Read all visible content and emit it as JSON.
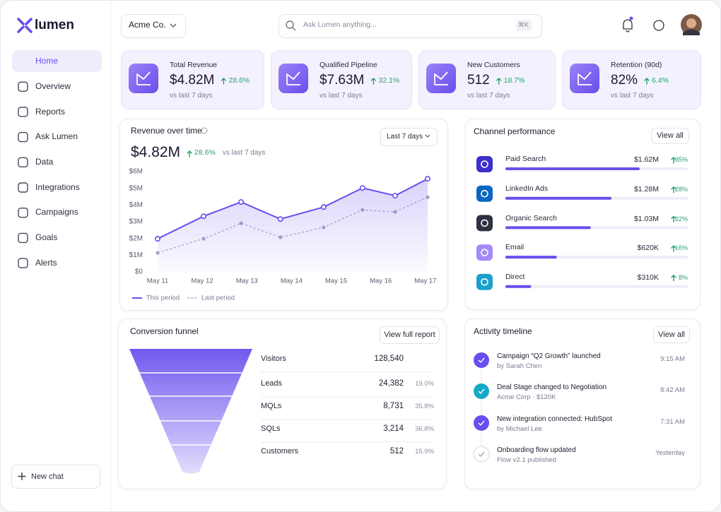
{
  "brand": "lumen",
  "nav": [
    "Home",
    "Overview",
    "Reports",
    "Ask Lumen",
    "Data",
    "Integrations",
    "Campaigns",
    "Goals",
    "Alerts"
  ],
  "new_chat": "New chat",
  "org": "Acme Co.",
  "search": {
    "placeholder": "Ask Lumen anything...",
    "shortcut": "⌘K"
  },
  "kpis": [
    {
      "label": "Total Revenue",
      "value": "$4.82M",
      "change": "28.6%",
      "note": "vs last 7 days"
    },
    {
      "label": "Qualified Pipeline",
      "value": "$7.63M",
      "change": "32.1%",
      "note": "vs last 7 days"
    },
    {
      "label": "New Customers",
      "value": "512",
      "change": "18.7%",
      "note": "vs last 7 days"
    },
    {
      "label": "Retention (90d)",
      "value": "82%",
      "change": "6.4%",
      "note": "vs last 7 days"
    }
  ],
  "revenue": {
    "title": "Revenue over time",
    "value": "$4.82M",
    "change": "28.6%",
    "note": "vs last 7 days",
    "range": "Last 7 days",
    "chart_data": {
      "type": "line",
      "x": [
        11,
        12.03,
        12.87,
        13.75,
        14.72,
        15.59,
        16.32,
        17.05
      ],
      "xlim": [
        11,
        17.05
      ],
      "xticks": [
        {
          "value": 11,
          "label": "May 11"
        },
        {
          "value": 12,
          "label": "May 12"
        },
        {
          "value": 13,
          "label": "May 13"
        },
        {
          "value": 14,
          "label": "May 14"
        },
        {
          "value": 15,
          "label": "May 15"
        },
        {
          "value": 16,
          "label": "May 16"
        },
        {
          "value": 17,
          "label": "May 17"
        }
      ],
      "ylim": [
        0,
        6
      ],
      "yticks": [
        {
          "value": 0,
          "label": "$0"
        },
        {
          "value": 1,
          "label": "$1M"
        },
        {
          "value": 2,
          "label": "$2M"
        },
        {
          "value": 3,
          "label": "$3M"
        },
        {
          "value": 4,
          "label": "$4M"
        },
        {
          "value": 5,
          "label": "$5M"
        },
        {
          "value": 6,
          "label": "$6M"
        }
      ],
      "grid": false,
      "series": [
        {
          "name": "This period",
          "color": "#6a4ded",
          "values": [
            1.98,
            3.33,
            4.18,
            3.16,
            3.88,
            5.02,
            4.56,
            5.57
          ]
        },
        {
          "name": "Last period",
          "color": "#a9a4c6",
          "values": [
            1.14,
            1.98,
            2.91,
            2.07,
            2.66,
            3.71,
            3.59,
            4.47
          ]
        }
      ]
    }
  },
  "channels": {
    "title": "Channel performance",
    "action": "View all",
    "chart_data": {
      "type": "bar",
      "categories": [
        "Paid Search",
        "LinkedIn Ads",
        "Organic Search",
        "Email",
        "Direct"
      ],
      "values": [
        1620000,
        1280000,
        1030000,
        620000,
        310000
      ],
      "value_labels": [
        "$1.62M",
        "$1.28M",
        "$1.03M",
        "$620K",
        "$310K"
      ],
      "changes": [
        "35%",
        "28%",
        "22%",
        "16%",
        "8%"
      ],
      "xlim": [
        0,
        2200000
      ],
      "color": "#6a4ded"
    }
  },
  "funnel": {
    "title": "Conversion funnel",
    "action": "View full report",
    "stages": [
      {
        "name": "Visitors",
        "value": "128,540"
      },
      {
        "name": "Leads",
        "value": "24,382",
        "rate": "19.0%"
      },
      {
        "name": "MQLs",
        "value": "8,731",
        "rate": "35.8%"
      },
      {
        "name": "SQLs",
        "value": "3,214",
        "rate": "36.8%"
      },
      {
        "name": "Customers",
        "value": "512",
        "rate": "15.9%"
      }
    ]
  },
  "activity": {
    "title": "Activity timeline",
    "action": "View all",
    "items": [
      {
        "title": "Campaign “Q2 Growth” launched",
        "detail": "by Sarah Chen",
        "time": "9:15 AM"
      },
      {
        "title": "Deal Stage changed to Negotiation",
        "detail": "Acme Corp · $120K",
        "time": "8:42 AM"
      },
      {
        "title": "New integration connected: HubSpot",
        "detail": "by Michael Lee",
        "time": "7:31 AM"
      },
      {
        "title": "Onboarding flow updated",
        "detail": "Flow v2.1 published",
        "time": "Yesterday"
      }
    ]
  }
}
